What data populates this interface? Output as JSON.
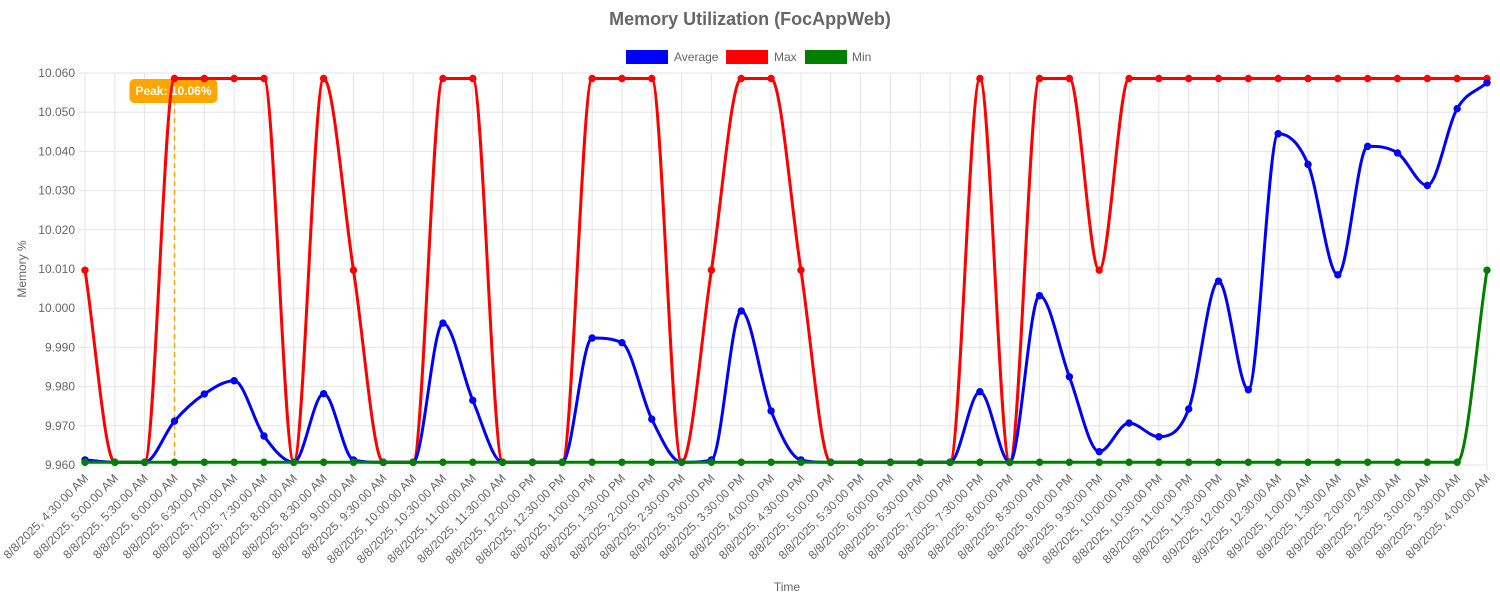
{
  "chart_data": {
    "type": "line",
    "title": "Memory Utilization (FocAppWeb)",
    "xlabel": "Time",
    "ylabel": "Memory %",
    "ylim": [
      9.96,
      10.06
    ],
    "y_ticks": [
      "9.960",
      "9.970",
      "9.980",
      "9.990",
      "10.000",
      "10.010",
      "10.020",
      "10.030",
      "10.040",
      "10.050",
      "10.060"
    ],
    "grid": true,
    "legend_position": "top-center",
    "categories": [
      "8/8/2025, 4:30:00 AM",
      "8/8/2025, 5:00:00 AM",
      "8/8/2025, 5:30:00 AM",
      "8/8/2025, 6:00:00 AM",
      "8/8/2025, 6:30:00 AM",
      "8/8/2025, 7:00:00 AM",
      "8/8/2025, 7:30:00 AM",
      "8/8/2025, 8:00:00 AM",
      "8/8/2025, 8:30:00 AM",
      "8/8/2025, 9:00:00 AM",
      "8/8/2025, 9:30:00 AM",
      "8/8/2025, 10:00:00 AM",
      "8/8/2025, 10:30:00 AM",
      "8/8/2025, 11:00:00 AM",
      "8/8/2025, 11:30:00 AM",
      "8/8/2025, 12:00:00 PM",
      "8/8/2025, 12:30:00 PM",
      "8/8/2025, 1:00:00 PM",
      "8/8/2025, 1:30:00 PM",
      "8/8/2025, 2:00:00 PM",
      "8/8/2025, 2:30:00 PM",
      "8/8/2025, 3:00:00 PM",
      "8/8/2025, 3:30:00 PM",
      "8/8/2025, 4:00:00 PM",
      "8/8/2025, 4:30:00 PM",
      "8/8/2025, 5:00:00 PM",
      "8/8/2025, 5:30:00 PM",
      "8/8/2025, 6:00:00 PM",
      "8/8/2025, 6:30:00 PM",
      "8/8/2025, 7:00:00 PM",
      "8/8/2025, 7:30:00 PM",
      "8/8/2025, 8:00:00 PM",
      "8/8/2025, 8:30:00 PM",
      "8/8/2025, 9:00:00 PM",
      "8/8/2025, 9:30:00 PM",
      "8/8/2025, 10:00:00 PM",
      "8/8/2025, 10:30:00 PM",
      "8/8/2025, 11:00:00 PM",
      "8/8/2025, 11:30:00 PM",
      "8/9/2025, 12:00:00 AM",
      "8/9/2025, 12:30:00 AM",
      "8/9/2025, 1:00:00 AM",
      "8/9/2025, 1:30:00 AM",
      "8/9/2025, 2:00:00 AM",
      "8/9/2025, 2:30:00 AM",
      "8/9/2025, 3:00:00 AM",
      "8/9/2025, 3:30:00 AM",
      "8/9/2025, 4:00:00 AM"
    ],
    "series": [
      {
        "name": "Average",
        "color": "#0000ff",
        "values": [
          9.9613,
          9.9607,
          9.9607,
          9.9712,
          9.9781,
          9.9815,
          9.9674,
          9.9607,
          9.9782,
          9.9613,
          9.9607,
          9.9607,
          9.9962,
          9.9765,
          9.9607,
          9.9607,
          9.9607,
          9.9924,
          9.9912,
          9.9717,
          9.9607,
          9.9613,
          9.9993,
          9.9738,
          9.9613,
          9.9607,
          9.9607,
          9.9607,
          9.9607,
          9.9607,
          9.9787,
          9.9607,
          10.0032,
          9.9825,
          9.9634,
          9.9707,
          9.9672,
          9.9743,
          10.0069,
          9.9792,
          10.0445,
          10.0367,
          10.0085,
          10.0413,
          10.0396,
          10.0313,
          10.0509,
          10.0575
        ]
      },
      {
        "name": "Max",
        "color": "#ff0000",
        "values": [
          10.0097,
          9.9607,
          9.9607,
          10.0586,
          10.0586,
          10.0586,
          10.0586,
          9.9607,
          10.0586,
          10.0097,
          9.9607,
          9.9607,
          10.0586,
          10.0586,
          9.9607,
          9.9607,
          9.9607,
          10.0586,
          10.0586,
          10.0586,
          9.9607,
          10.0097,
          10.0586,
          10.0586,
          10.0097,
          9.9607,
          9.9607,
          9.9607,
          9.9607,
          9.9607,
          10.0586,
          9.9607,
          10.0586,
          10.0586,
          10.0097,
          10.0586,
          10.0586,
          10.0586,
          10.0586,
          10.0586,
          10.0586,
          10.0586,
          10.0586,
          10.0586,
          10.0586,
          10.0586,
          10.0586,
          10.0586
        ]
      },
      {
        "name": "Min",
        "color": "#008000",
        "values": [
          9.9607,
          9.9607,
          9.9607,
          9.9607,
          9.9607,
          9.9607,
          9.9607,
          9.9607,
          9.9607,
          9.9607,
          9.9607,
          9.9607,
          9.9607,
          9.9607,
          9.9607,
          9.9607,
          9.9607,
          9.9607,
          9.9607,
          9.9607,
          9.9607,
          9.9607,
          9.9607,
          9.9607,
          9.9607,
          9.9607,
          9.9607,
          9.9607,
          9.9607,
          9.9607,
          9.9607,
          9.9607,
          9.9607,
          9.9607,
          9.9607,
          9.9607,
          9.9607,
          9.9607,
          9.9607,
          9.9607,
          9.9607,
          9.9607,
          9.9607,
          9.9607,
          9.9607,
          9.9607,
          9.9607,
          10.0097
        ]
      }
    ],
    "annotation": {
      "label": "Peak: 10.06%",
      "x": "8/8/2025, 6:00:00 AM",
      "color": "#ffa500"
    }
  }
}
